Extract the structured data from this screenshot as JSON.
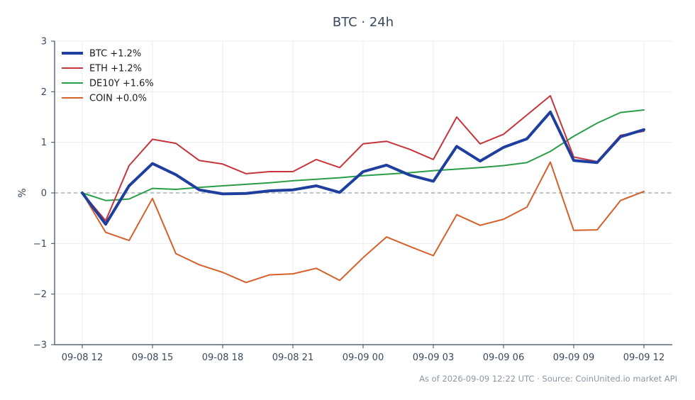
{
  "chart_data": {
    "type": "line",
    "title": "BTC · 24h",
    "ylabel": "%",
    "xlabel": "",
    "ylim": [
      -3,
      3
    ],
    "yticks": [
      3,
      2,
      1,
      0,
      -1,
      -2,
      -3
    ],
    "ytick_labels": [
      "3",
      "2",
      "1",
      "0",
      "−1",
      "−2",
      "−3"
    ],
    "xticks": [
      "09-08 12",
      "09-08 15",
      "09-08 18",
      "09-08 21",
      "09-09 00",
      "09-09 03",
      "09-09 06",
      "09-09 09",
      "09-09 12"
    ],
    "x": [
      "09-08 12",
      "09-08 13",
      "09-08 14",
      "09-08 15",
      "09-08 16",
      "09-08 17",
      "09-08 18",
      "09-08 19",
      "09-08 20",
      "09-08 21",
      "09-08 22",
      "09-08 23",
      "09-09 00",
      "09-09 01",
      "09-09 02",
      "09-09 03",
      "09-09 04",
      "09-09 05",
      "09-09 06",
      "09-09 07",
      "09-09 08",
      "09-09 09",
      "09-09 10",
      "09-09 11",
      "09-09 12"
    ],
    "grid": true,
    "legend": "top-left",
    "baseline": 0,
    "series": [
      {
        "name": "BTC +1.2%",
        "color": "#1f3f9e",
        "width": 4,
        "values": [
          0.0,
          -0.62,
          0.14,
          0.58,
          0.36,
          0.06,
          -0.02,
          -0.01,
          0.04,
          0.06,
          0.14,
          0.01,
          0.42,
          0.55,
          0.35,
          0.23,
          0.92,
          0.63,
          0.9,
          1.07,
          1.6,
          0.64,
          0.6,
          1.11,
          1.25
        ]
      },
      {
        "name": "ETH +1.2%",
        "color": "#c8343b",
        "width": 2,
        "values": [
          0.0,
          -0.55,
          0.54,
          1.06,
          0.98,
          0.64,
          0.57,
          0.38,
          0.42,
          0.42,
          0.66,
          0.5,
          0.97,
          1.02,
          0.86,
          0.66,
          1.5,
          0.97,
          1.16,
          1.54,
          1.92,
          0.71,
          0.62,
          1.14,
          1.22
        ]
      },
      {
        "name": "DE10Y +1.6%",
        "color": "#2a9d48",
        "width": 2,
        "values": [
          0.0,
          -0.15,
          -0.12,
          0.09,
          0.07,
          0.11,
          0.14,
          0.17,
          0.2,
          0.24,
          0.27,
          0.3,
          0.34,
          0.37,
          0.4,
          0.44,
          0.47,
          0.5,
          0.54,
          0.6,
          0.82,
          1.12,
          1.38,
          1.59,
          1.64
        ]
      },
      {
        "name": "COIN +0.0%",
        "color": "#d4602a",
        "width": 2,
        "values": [
          0.0,
          -0.78,
          -0.94,
          -0.11,
          -1.2,
          -1.42,
          -1.57,
          -1.77,
          -1.62,
          -1.6,
          -1.49,
          -1.73,
          -1.28,
          -0.87,
          -1.06,
          -1.24,
          -0.43,
          -0.64,
          -0.52,
          -0.28,
          0.61,
          -0.74,
          -0.73,
          -0.15,
          0.03
        ]
      }
    ]
  },
  "footer": "As of 2026-09-09 12:22 UTC · Source: CoinUnited.io market API",
  "colors": {
    "axis": "#3a4a5c",
    "grid": "#eaeef2",
    "baseline": "#8fa3b5"
  }
}
